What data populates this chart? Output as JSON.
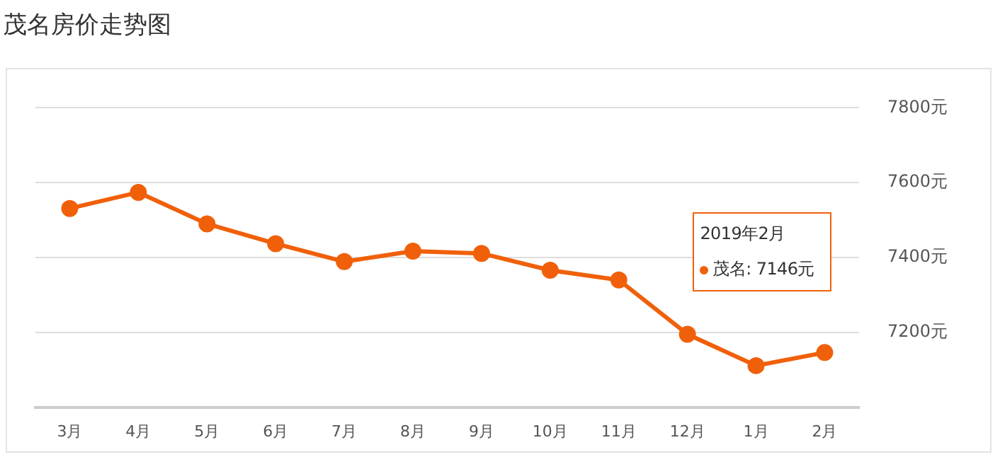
{
  "chart_data": {
    "type": "line",
    "title": "茂名房价走势图",
    "categories": [
      "3月",
      "4月",
      "5月",
      "6月",
      "7月",
      "8月",
      "9月",
      "10月",
      "11月",
      "12月",
      "1月",
      "2月"
    ],
    "series": [
      {
        "color": "#f0600a",
        "values": [
          7531,
          7574,
          7490,
          7437,
          7389,
          7417,
          7411,
          7366,
          7340,
          7195,
          7111,
          7146
        ]
      }
    ],
    "annotations": [
      "2019年2月",
      "茂名: 7146元"
    ],
    "ylim": [
      7000,
      7800
    ],
    "yticks": [
      {
        "value": 7200,
        "label": "7200元"
      },
      {
        "value": 7400,
        "label": "7400元"
      },
      {
        "value": 7600,
        "label": "7600元"
      },
      {
        "value": 7800,
        "label": "7800元"
      }
    ],
    "grid": "y",
    "marker": "circle",
    "line_style": "solid",
    "legend": false
  }
}
